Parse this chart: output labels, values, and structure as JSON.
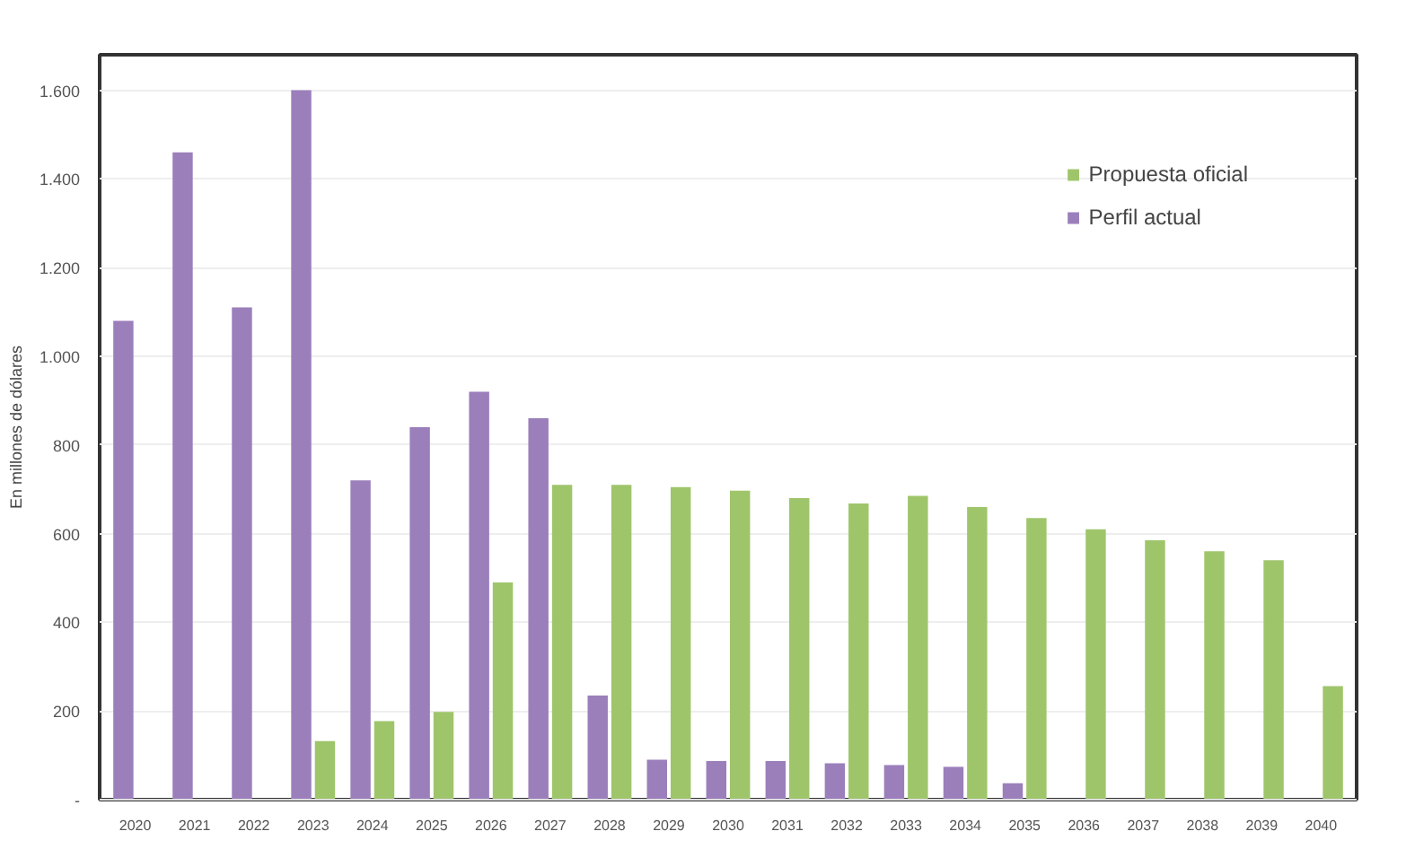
{
  "chart_data": {
    "type": "bar",
    "ylabel": "En millones de dólares",
    "categories": [
      "2020",
      "2021",
      "2022",
      "2023",
      "2024",
      "2025",
      "2026",
      "2027",
      "2028",
      "2029",
      "2030",
      "2031",
      "2032",
      "2033",
      "2034",
      "2035",
      "2036",
      "2037",
      "2038",
      "2039",
      "2040"
    ],
    "series": [
      {
        "name": "Propuesta oficial",
        "color": "#9fc56b",
        "values": [
          null,
          null,
          null,
          132,
          177,
          198,
          490,
          710,
          710,
          705,
          697,
          680,
          668,
          685,
          660,
          635,
          610,
          585,
          560,
          540,
          256
        ]
      },
      {
        "name": "Perfil actual",
        "color": "#9b7fbb",
        "values": [
          1080,
          1460,
          1110,
          1600,
          720,
          840,
          920,
          860,
          235,
          90,
          87,
          87,
          82,
          78,
          74,
          37,
          null,
          null,
          null,
          null,
          null
        ]
      }
    ],
    "ylim": [
      0,
      1680
    ],
    "yticks": [
      {
        "value": 0,
        "label": "-"
      },
      {
        "value": 200,
        "label": "200"
      },
      {
        "value": 400,
        "label": "400"
      },
      {
        "value": 600,
        "label": "600"
      },
      {
        "value": 800,
        "label": "800"
      },
      {
        "value": 1000,
        "label": "1.000"
      },
      {
        "value": 1200,
        "label": "1.200"
      },
      {
        "value": 1400,
        "label": "1.400"
      },
      {
        "value": 1600,
        "label": "1.600"
      }
    ],
    "grid": "y",
    "legend": "top right"
  }
}
